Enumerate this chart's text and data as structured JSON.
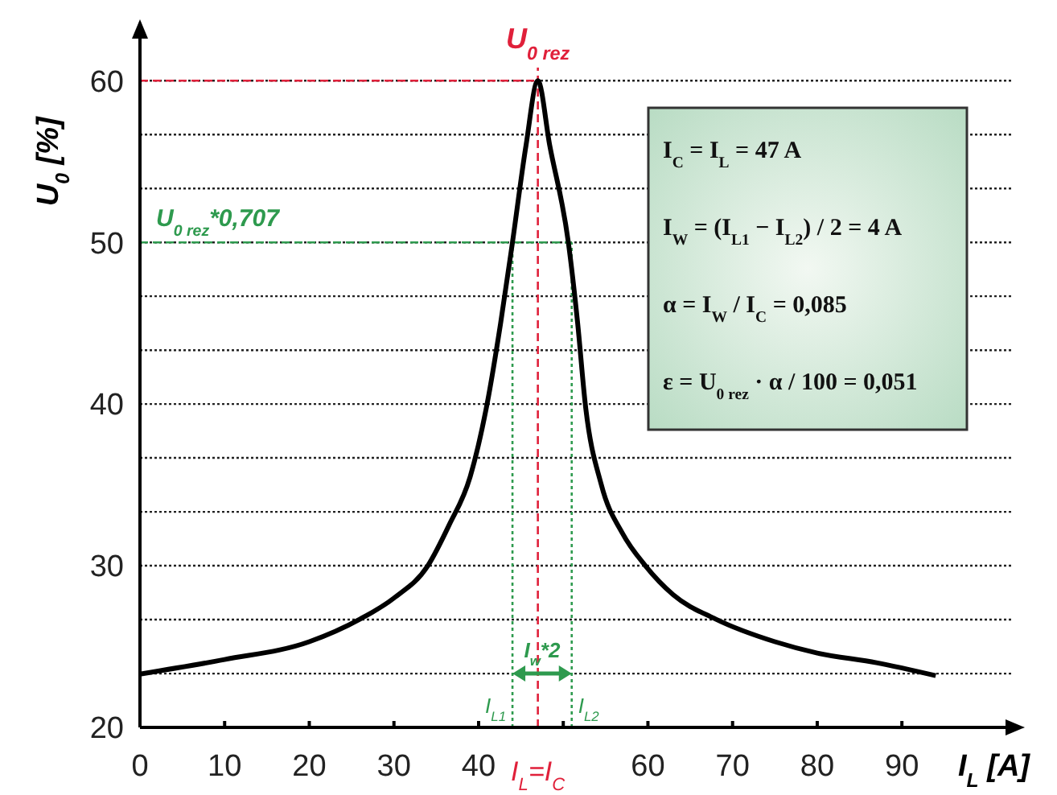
{
  "chart_data": {
    "type": "line",
    "xlabel": "I$_{L}$ [A]",
    "ylabel": "U$_{0}$ [%]",
    "x": [
      0,
      10,
      20,
      26,
      30,
      34,
      36.5,
      39,
      41,
      42.6,
      44,
      45.6,
      47,
      48.4,
      50.6,
      51.7,
      52.6,
      54.5,
      57,
      59.7,
      63,
      68,
      75,
      80,
      87,
      94
    ],
    "series": [
      {
        "color": "#000000",
        "values": [
          23.3,
          24.2,
          25.3,
          26.7,
          28,
          30,
          32.5,
          35.5,
          40,
          45,
          50,
          56,
          60,
          56,
          50,
          45,
          40,
          35,
          32,
          30,
          28.2,
          26.7,
          25.3,
          24.6,
          24,
          23.2
        ]
      }
    ],
    "xlim": [
      0,
      103
    ],
    "ylim": [
      20,
      63
    ],
    "xticks": [
      0,
      10,
      20,
      30,
      40,
      {
        "value": 50,
        "label": null
      },
      60,
      70,
      80,
      90
    ],
    "yticks": [
      20,
      {
        "value": 23.33,
        "label": null
      },
      {
        "value": 26.67,
        "label": null
      },
      30,
      {
        "value": 33.33,
        "label": null
      },
      {
        "value": 36.67,
        "label": null
      },
      40,
      {
        "value": 43.33,
        "label": null
      },
      {
        "value": 46.67,
        "label": null
      },
      50,
      {
        "value": 53.33,
        "label": null
      },
      {
        "value": 56.67,
        "label": null
      },
      60
    ],
    "grid": "y",
    "marker": "none",
    "line_style": "solid",
    "ref_lines": [
      {
        "axis": "y",
        "value": 60,
        "label": null,
        "color": "#e0203a",
        "line_style": "dashed"
      },
      {
        "axis": "x",
        "value": 47,
        "label": "I$_{L}$=I$_{C}$",
        "color": "#e0203a",
        "line_style": "dashed"
      },
      {
        "axis": "y",
        "value": 50,
        "label": "U$_{0 rez}$*0,707",
        "color": "#2e9a4e",
        "line_style": "dashed"
      },
      {
        "axis": "x",
        "value": 44,
        "label": "I$_{L1}$",
        "color": "#2e9a4e",
        "line_style": "dotted"
      },
      {
        "axis": "x",
        "value": 51,
        "label": "I$_{L2}$",
        "color": "#2e9a4e",
        "line_style": "dotted"
      }
    ],
    "annotations": [
      {
        "text": "U$_{0 rez}$",
        "x": 47,
        "y": 60
      },
      {
        "text": "I$_{w}$*2",
        "x": 47.5,
        "y": 23.33
      },
      "I$_{C}$ = I$_{L}$ = 47 A",
      "I$_{W}$ = (I$_{L1}$ − I$_{L2}$) / 2 = 4 A",
      "α = I$_{W}$ / I$_{C}$ = 0,085",
      "ε = U$_{0 rez}$ · α / 100 = 0,051"
    ]
  }
}
